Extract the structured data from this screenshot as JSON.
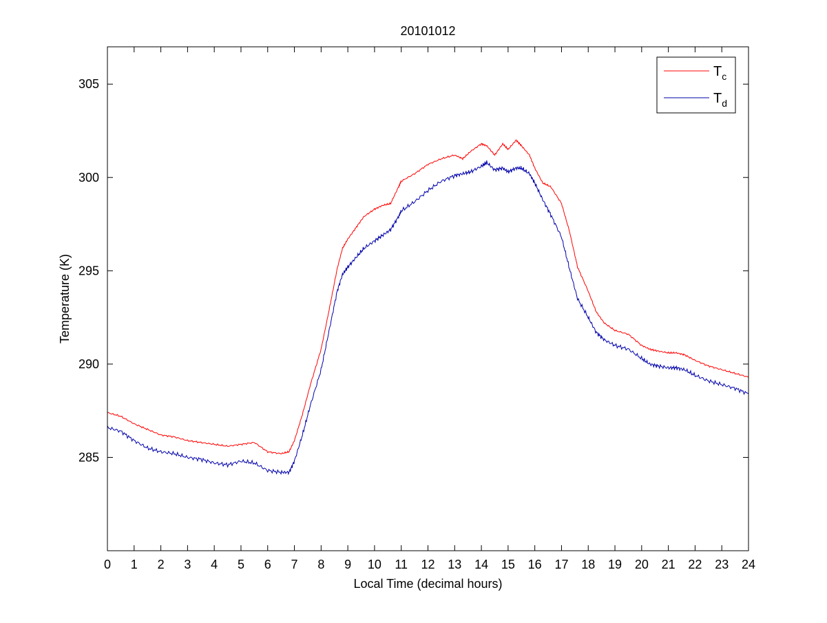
{
  "chart_data": {
    "type": "line",
    "title": "20101012",
    "xlabel": "Local Time (decimal hours)",
    "ylabel": "Temperature (K)",
    "xlim": [
      0,
      24
    ],
    "ylim": [
      280,
      307
    ],
    "xticks": [
      0,
      1,
      2,
      3,
      4,
      5,
      6,
      7,
      8,
      9,
      10,
      11,
      12,
      13,
      14,
      15,
      16,
      17,
      18,
      19,
      20,
      21,
      22,
      23,
      24
    ],
    "yticks": [
      285,
      290,
      295,
      300,
      305
    ],
    "grid": false,
    "legend_position": "top-right",
    "series": [
      {
        "name": "T",
        "subscript": "c",
        "color": "#ff0000",
        "x": [
          0,
          0.5,
          1,
          1.5,
          2,
          2.5,
          3,
          3.5,
          4,
          4.5,
          5,
          5.5,
          6,
          6.5,
          6.8,
          7,
          7.3,
          7.6,
          8,
          8.3,
          8.6,
          8.8,
          9,
          9.3,
          9.6,
          10,
          10.3,
          10.6,
          10.9,
          11,
          11.5,
          12,
          12.5,
          13,
          13.3,
          13.6,
          14,
          14.2,
          14.5,
          14.8,
          15,
          15.3,
          15.5,
          15.8,
          16,
          16.3,
          16.6,
          17,
          17.3,
          17.6,
          18,
          18.3,
          18.6,
          19,
          19.5,
          20,
          20.3,
          20.6,
          21,
          21.3,
          21.6,
          22,
          22.5,
          23,
          23.5,
          24
        ],
        "y": [
          287.4,
          287.2,
          286.8,
          286.5,
          286.2,
          286.1,
          285.9,
          285.8,
          285.7,
          285.6,
          285.7,
          285.8,
          285.3,
          285.2,
          285.3,
          285.9,
          287.3,
          288.9,
          290.8,
          292.9,
          295.1,
          296.2,
          296.7,
          297.3,
          297.9,
          298.3,
          298.5,
          298.6,
          299.5,
          299.8,
          300.2,
          300.7,
          301.0,
          301.2,
          301.0,
          301.4,
          301.8,
          301.7,
          301.2,
          301.8,
          301.5,
          302.0,
          301.7,
          301.2,
          300.5,
          299.7,
          299.5,
          298.6,
          297.1,
          295.2,
          293.9,
          292.8,
          292.2,
          291.8,
          291.6,
          291.0,
          290.8,
          290.7,
          290.6,
          290.6,
          290.5,
          290.2,
          289.9,
          289.7,
          289.5,
          289.3
        ]
      },
      {
        "name": "T",
        "subscript": "d",
        "color": "#0000aa",
        "x": [
          0,
          0.5,
          1,
          1.5,
          2,
          2.5,
          3,
          3.5,
          4,
          4.5,
          5,
          5.5,
          6,
          6.5,
          6.8,
          7,
          7.3,
          7.6,
          8,
          8.3,
          8.6,
          8.8,
          9,
          9.3,
          9.6,
          10,
          10.3,
          10.6,
          10.9,
          11,
          11.5,
          12,
          12.5,
          13,
          13.3,
          13.6,
          14,
          14.2,
          14.5,
          14.8,
          15,
          15.3,
          15.5,
          15.8,
          16,
          16.3,
          16.6,
          17,
          17.3,
          17.6,
          18,
          18.3,
          18.6,
          19,
          19.5,
          20,
          20.3,
          20.6,
          21,
          21.3,
          21.6,
          22,
          22.5,
          23,
          23.5,
          24
        ],
        "y": [
          286.6,
          286.4,
          285.9,
          285.5,
          285.3,
          285.2,
          285.0,
          284.9,
          284.7,
          284.6,
          284.8,
          284.7,
          284.3,
          284.2,
          284.2,
          284.8,
          286.2,
          287.8,
          289.7,
          291.8,
          293.9,
          294.8,
          295.2,
          295.7,
          296.2,
          296.6,
          296.9,
          297.2,
          297.9,
          298.2,
          298.7,
          299.3,
          299.8,
          300.1,
          300.2,
          300.3,
          300.6,
          300.8,
          300.4,
          300.5,
          300.3,
          300.5,
          300.5,
          300.2,
          299.7,
          298.8,
          298.0,
          296.8,
          295.1,
          293.5,
          292.5,
          291.7,
          291.3,
          291.0,
          290.8,
          290.3,
          290.0,
          289.9,
          289.8,
          289.8,
          289.7,
          289.4,
          289.1,
          288.9,
          288.7,
          288.4
        ]
      }
    ]
  }
}
